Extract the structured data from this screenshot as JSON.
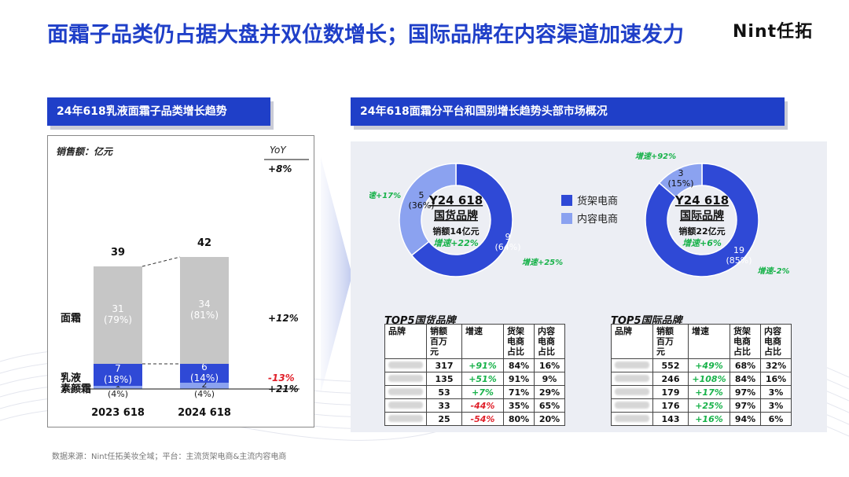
{
  "title": "面霜子品类仍占据大盘并双位数增长；国际品牌在内容渠道加速发力",
  "logo": "Nint任拓",
  "left_section": {
    "header": "24年618乳液面霜子品类增长趋势",
    "unit_label": "销售额：亿元",
    "yoy_label": "YoY",
    "footnote": "数据来源：Nint任拓美妆全域；平台：主流货架电商&主流内容电商"
  },
  "right_section": {
    "header": "24年618面霜分平台和国别增长趋势头部市场概况"
  },
  "colors": {
    "brand_blue": "#1f3fc8",
    "shelf": "#2f49d6",
    "content": "#8ba2f0",
    "mianshuang_bar": "#c6c6c6",
    "sumianshuang_bar": "#8ba2f0",
    "up": "#18b24a",
    "down": "#e0202a"
  },
  "chart_data": [
    {
      "type": "bar",
      "stacked": true,
      "categories": [
        "2023 618",
        "2024 618"
      ],
      "series": [
        {
          "name": "素颜霜",
          "values": [
            1,
            2
          ],
          "labels": [
            "1\n(4%)",
            "2\n(4%)"
          ],
          "yoy": "+21%"
        },
        {
          "name": "乳液",
          "values": [
            7,
            6
          ],
          "labels": [
            "7\n(18%)",
            "6\n(14%)"
          ],
          "yoy": "-13%"
        },
        {
          "name": "面霜",
          "values": [
            31,
            34
          ],
          "labels": [
            "31\n(79%)",
            "34\n(81%)"
          ],
          "yoy": "+12%"
        }
      ],
      "totals": [
        39,
        42
      ],
      "total_yoy": "+8%",
      "ylabel": "销售额：亿元"
    },
    {
      "type": "pie",
      "donut": true,
      "center_title": "Y24 618",
      "center_subtitle": "国货品牌",
      "center_sales": "销额14亿元",
      "center_growth": "增速+22%",
      "slices": [
        {
          "name": "货架电商",
          "value": 9,
          "label": "9",
          "pct_label": "(64%)",
          "growth": "增速+25%"
        },
        {
          "name": "内容电商",
          "value": 5,
          "label": "5",
          "pct_label": "(36%)",
          "growth": "增速+17%"
        }
      ]
    },
    {
      "type": "pie",
      "donut": true,
      "center_title": "Y24 618",
      "center_subtitle": "国际品牌",
      "center_sales": "销额22亿元",
      "center_growth": "增速+6%",
      "slices": [
        {
          "name": "货架电商",
          "value": 19,
          "label": "19",
          "pct_label": "(85%)",
          "growth": "增速-2%"
        },
        {
          "name": "内容电商",
          "value": 3,
          "label": "3",
          "pct_label": "(15%)",
          "growth": "增速+92%"
        }
      ]
    },
    {
      "type": "table",
      "title": "TOP5国货品牌",
      "columns": [
        "品牌",
        "销额百万元",
        "增速",
        "货架电商占比",
        "内容电商占比"
      ],
      "rows": [
        {
          "brand": "",
          "sales": "317",
          "growth": "+91%",
          "shelf": "84%",
          "content": "16%"
        },
        {
          "brand": "",
          "sales": "135",
          "growth": "+51%",
          "shelf": "91%",
          "content": "9%"
        },
        {
          "brand": "",
          "sales": "53",
          "growth": "+7%",
          "shelf": "71%",
          "content": "29%"
        },
        {
          "brand": "",
          "sales": "33",
          "growth": "-44%",
          "shelf": "35%",
          "content": "65%"
        },
        {
          "brand": "",
          "sales": "25",
          "growth": "-54%",
          "shelf": "80%",
          "content": "20%"
        }
      ]
    },
    {
      "type": "table",
      "title": "TOP5国际品牌",
      "columns": [
        "品牌",
        "销额百万元",
        "增速",
        "货架电商占比",
        "内容电商占比"
      ],
      "rows": [
        {
          "brand": "",
          "sales": "552",
          "growth": "+49%",
          "shelf": "68%",
          "content": "32%"
        },
        {
          "brand": "",
          "sales": "246",
          "growth": "+108%",
          "shelf": "84%",
          "content": "16%"
        },
        {
          "brand": "",
          "sales": "179",
          "growth": "+17%",
          "shelf": "97%",
          "content": "3%"
        },
        {
          "brand": "",
          "sales": "176",
          "growth": "+25%",
          "shelf": "97%",
          "content": "3%"
        },
        {
          "brand": "",
          "sales": "143",
          "growth": "+16%",
          "shelf": "94%",
          "content": "6%"
        }
      ]
    }
  ],
  "legend": {
    "shelf": "货架电商",
    "content": "内容电商"
  },
  "table_headers": {
    "brand": "品牌",
    "sales": "销额\n百万\n元",
    "growth": "增速",
    "shelf": "货架\n电商\n占比",
    "content": "内容\n电商\n占比"
  }
}
